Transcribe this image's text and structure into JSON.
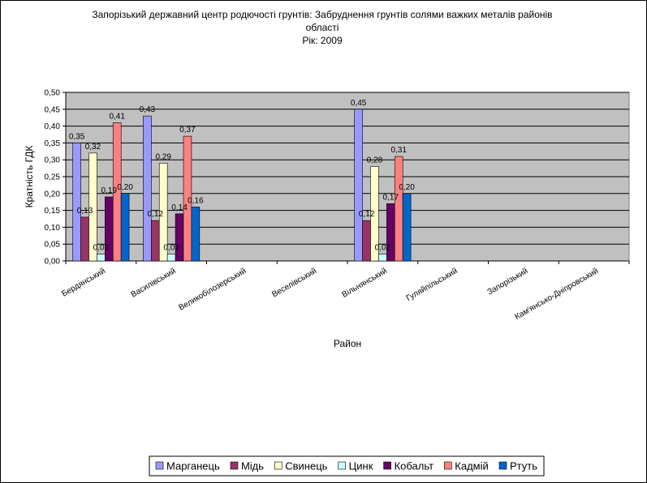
{
  "chart_data": {
    "type": "bar",
    "title": "Запорізький державний центр родючості грунтів: Забруднення грунтів солями важких металів районів області",
    "subtitle": "Рік: 2009",
    "xlabel": "Район",
    "ylabel": "Кратність ГДК",
    "ylim": [
      0,
      0.5
    ],
    "y_tick_step": 0.05,
    "grid": true,
    "legend_position": "bottom",
    "categories": [
      "Бердянський",
      "Василівський",
      "Великобілозерський",
      "Веселівський",
      "Вільнянський",
      "Гуляйпільський",
      "Запорізький",
      "Кам'янсько-Дніпровський"
    ],
    "series": [
      {
        "name": "Марганець",
        "color": "#9999ff",
        "values": [
          0.35,
          0.43,
          null,
          null,
          0.45,
          null,
          null,
          null
        ],
        "labels": [
          "0,35",
          "0,43",
          "",
          "",
          "0,45",
          "",
          "",
          ""
        ]
      },
      {
        "name": "Мідь",
        "color": "#993366",
        "values": [
          0.13,
          0.12,
          null,
          null,
          0.12,
          null,
          null,
          null
        ],
        "labels": [
          "0,13",
          "0,12",
          "",
          "",
          "0,12",
          "",
          "",
          ""
        ]
      },
      {
        "name": "Свинець",
        "color": "#ffffcc",
        "values": [
          0.32,
          0.29,
          null,
          null,
          0.28,
          null,
          null,
          null
        ],
        "labels": [
          "0,32",
          "0,29",
          "",
          "",
          "0,28",
          "",
          "",
          ""
        ]
      },
      {
        "name": "Цинк",
        "color": "#ccffff",
        "values": [
          0.02,
          0.02,
          null,
          null,
          0.02,
          null,
          null,
          null
        ],
        "labels": [
          "0,02",
          "0,02",
          "",
          "",
          "0,02",
          "",
          "",
          ""
        ]
      },
      {
        "name": "Кобальт",
        "color": "#660066",
        "values": [
          0.19,
          0.14,
          null,
          null,
          0.17,
          null,
          null,
          null
        ],
        "labels": [
          "0,19",
          "0,14",
          "",
          "",
          "0,17",
          "",
          "",
          ""
        ]
      },
      {
        "name": "Кадмій",
        "color": "#ff8080",
        "values": [
          0.41,
          0.37,
          null,
          null,
          0.31,
          null,
          null,
          null
        ],
        "labels": [
          "0,41",
          "0,37",
          "",
          "",
          "0,31",
          "",
          "",
          ""
        ]
      },
      {
        "name": "Ртуть",
        "color": "#0066cc",
        "values": [
          0.2,
          0.16,
          null,
          null,
          0.2,
          null,
          null,
          null
        ],
        "labels": [
          "0,20",
          "0,16",
          "",
          "",
          "0,20",
          "",
          "",
          ""
        ]
      }
    ],
    "plot_background": "#c0c0c0"
  }
}
